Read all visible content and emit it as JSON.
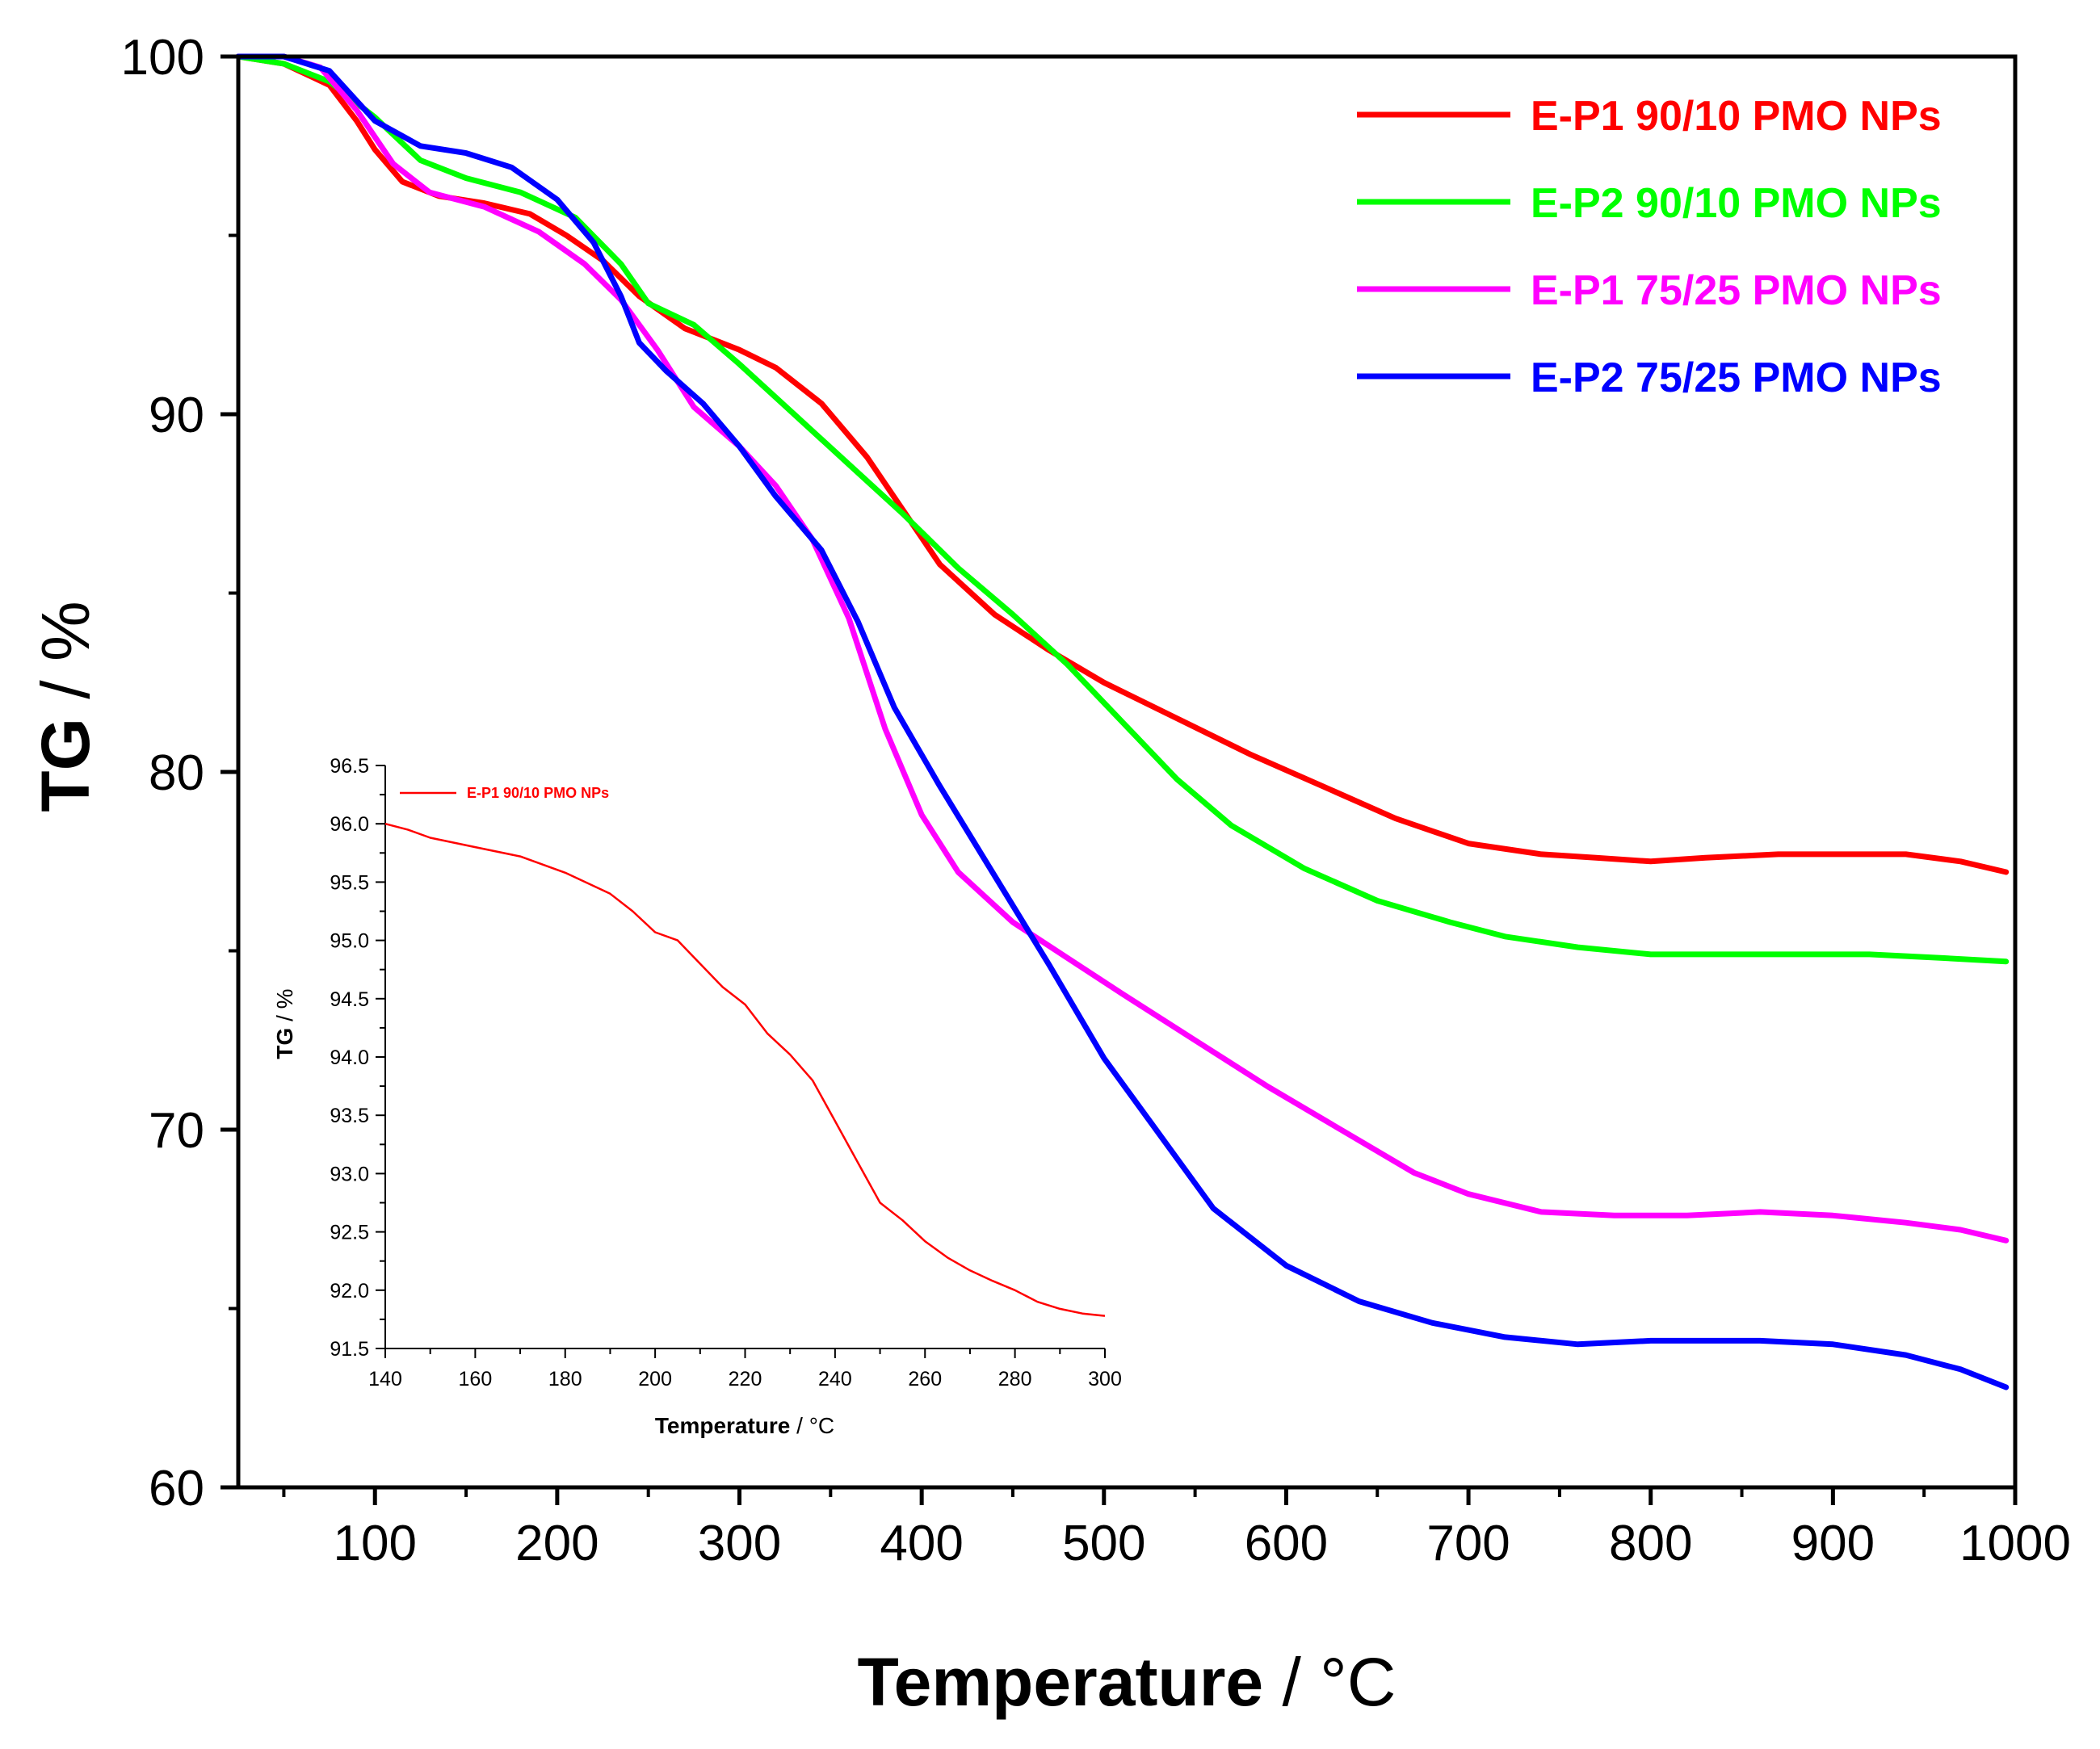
{
  "chart_data": [
    {
      "type": "line",
      "title": "",
      "xlabel": "Temperature",
      "xunit": "°C",
      "ylabel": "TG",
      "yunit": "%",
      "xlim": [
        25,
        1000
      ],
      "ylim": [
        60,
        100
      ],
      "xticks": [
        100,
        200,
        300,
        400,
        500,
        600,
        700,
        800,
        900,
        1000
      ],
      "yticks": [
        60,
        70,
        80,
        90,
        100
      ],
      "legend_position": "top-right",
      "series": [
        {
          "name": "E-P1 90/10 PMO NPs",
          "color": "#ff0000",
          "x": [
            25,
            50,
            75,
            90,
            100,
            115,
            135,
            160,
            185,
            205,
            225,
            245,
            270,
            300,
            320,
            345,
            370,
            390,
            410,
            440,
            470,
            500,
            540,
            580,
            620,
            660,
            700,
            740,
            770,
            800,
            830,
            870,
            900,
            940,
            970,
            995
          ],
          "y": [
            100,
            99.8,
            99.2,
            98.2,
            97.4,
            96.5,
            96.1,
            95.9,
            95.6,
            95.0,
            94.3,
            93.3,
            92.4,
            91.8,
            91.3,
            90.3,
            88.8,
            87.3,
            85.8,
            84.4,
            83.4,
            82.5,
            81.5,
            80.5,
            79.6,
            78.7,
            78.0,
            77.7,
            77.6,
            77.5,
            77.6,
            77.7,
            77.7,
            77.7,
            77.5,
            77.2
          ]
        },
        {
          "name": "E-P2 90/10 PMO NPs",
          "color": "#00ff00",
          "x": [
            25,
            50,
            75,
            100,
            125,
            150,
            180,
            210,
            235,
            250,
            275,
            300,
            330,
            360,
            390,
            420,
            450,
            480,
            510,
            540,
            570,
            610,
            650,
            690,
            720,
            760,
            800,
            840,
            880,
            920,
            960,
            995
          ],
          "y": [
            100,
            99.8,
            99.3,
            98.3,
            97.1,
            96.6,
            96.2,
            95.5,
            94.2,
            93.1,
            92.5,
            91.4,
            90.0,
            88.6,
            87.2,
            85.7,
            84.4,
            83.0,
            81.4,
            79.8,
            78.5,
            77.3,
            76.4,
            75.8,
            75.4,
            75.1,
            74.9,
            74.9,
            74.9,
            74.9,
            74.8,
            74.7
          ]
        },
        {
          "name": "E-P1 75/25 PMO NPs",
          "color": "#ff00ff",
          "x": [
            25,
            50,
            70,
            90,
            110,
            130,
            160,
            190,
            215,
            235,
            255,
            275,
            300,
            320,
            340,
            360,
            380,
            400,
            420,
            450,
            480,
            510,
            550,
            590,
            630,
            670,
            700,
            740,
            780,
            820,
            860,
            900,
            940,
            970,
            995
          ],
          "y": [
            100,
            100,
            99.7,
            98.5,
            97.0,
            96.2,
            95.8,
            95.1,
            94.2,
            93.2,
            91.8,
            90.2,
            89.1,
            88.0,
            86.5,
            84.3,
            81.2,
            78.8,
            77.2,
            75.8,
            74.8,
            73.8,
            72.5,
            71.2,
            70.0,
            68.8,
            68.2,
            67.7,
            67.6,
            67.6,
            67.7,
            67.6,
            67.4,
            67.2,
            66.9
          ]
        },
        {
          "name": "E-P2 75/25 PMO NPs",
          "color": "#0000ff",
          "x": [
            25,
            50,
            75,
            100,
            125,
            150,
            175,
            200,
            220,
            235,
            245,
            260,
            280,
            300,
            320,
            345,
            365,
            385,
            410,
            440,
            470,
            500,
            530,
            560,
            600,
            640,
            680,
            720,
            760,
            800,
            840,
            860,
            900,
            940,
            970,
            995
          ],
          "y": [
            100,
            100,
            99.6,
            98.2,
            97.5,
            97.3,
            96.9,
            96.0,
            94.8,
            93.3,
            92.0,
            91.2,
            90.3,
            89.1,
            87.7,
            86.2,
            84.2,
            81.8,
            79.6,
            77.1,
            74.6,
            72.0,
            69.9,
            67.8,
            66.2,
            65.2,
            64.6,
            64.2,
            64.0,
            64.1,
            64.1,
            64.1,
            64.0,
            63.7,
            63.3,
            62.8
          ]
        }
      ]
    },
    {
      "type": "line",
      "title": "",
      "xlabel": "Temperature",
      "xunit": "°C",
      "ylabel": "TG",
      "yunit": "%",
      "xlim": [
        140,
        300
      ],
      "ylim": [
        91.5,
        96.5
      ],
      "xticks": [
        140,
        160,
        180,
        200,
        220,
        240,
        260,
        280,
        300
      ],
      "yticks": [
        91.5,
        92.0,
        92.5,
        93.0,
        93.5,
        94.0,
        94.5,
        95.0,
        95.5,
        96.0,
        96.5
      ],
      "legend_position": "top-left",
      "series": [
        {
          "name": "E-P1 90/10 PMO NPs",
          "color": "#ff0000",
          "x": [
            140,
            145,
            150,
            160,
            170,
            180,
            190,
            195,
            200,
            205,
            210,
            215,
            220,
            225,
            230,
            235,
            240,
            245,
            250,
            255,
            260,
            265,
            270,
            275,
            280,
            285,
            290,
            295,
            300
          ],
          "y": [
            96.0,
            95.95,
            95.88,
            95.8,
            95.72,
            95.58,
            95.4,
            95.25,
            95.07,
            95.0,
            94.8,
            94.6,
            94.45,
            94.2,
            94.02,
            93.8,
            93.45,
            93.1,
            92.75,
            92.6,
            92.42,
            92.28,
            92.17,
            92.08,
            92.0,
            91.9,
            91.84,
            91.8,
            91.78
          ]
        }
      ]
    }
  ]
}
